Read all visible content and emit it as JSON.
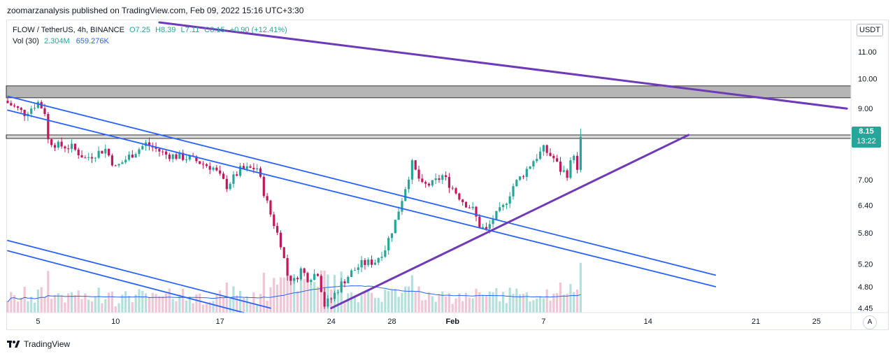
{
  "header": {
    "publisher": "zoomarzanalysis published on TradingView.com, Feb 09, 2022 15:16 UTC+3:30"
  },
  "legend": {
    "symbol": "FLOW / TetherUS, 4h, BINANCE",
    "open": "O7.25",
    "high": "H8.39",
    "low": "L7.11",
    "close": "C8.15",
    "change": "+0.90 (+12.41%)",
    "volume_label": "Vol (30)",
    "volume_value": "2.304M",
    "volume_ma": "659.276K"
  },
  "price_axis": {
    "currency": "USDT",
    "ticks": [
      "11.00",
      "10.00",
      "9.00",
      "8.15",
      "7.00",
      "6.40",
      "5.80",
      "5.20",
      "4.80",
      "4.45"
    ]
  },
  "last_price": {
    "price": "8.15",
    "countdown": "13:22",
    "color": "#26a69a"
  },
  "time_axis": {
    "ticks": [
      "5",
      "10",
      "17",
      "24",
      "28",
      "Feb",
      "7",
      "14",
      "21",
      "25"
    ]
  },
  "auto_scale_label": "A",
  "brand": {
    "logo": "tradingview-logo-icon",
    "name": "TradingView"
  },
  "colors": {
    "up": "#26a69a",
    "down": "#c2185b",
    "channel": "#2962ff",
    "trendline": "#6f3ab8",
    "zone": "#9e9e9e"
  },
  "chart_data": {
    "type": "candlestick",
    "timeframe": "4h",
    "symbol": "FLOW / TetherUS",
    "exchange": "BINANCE",
    "y_scale": "log",
    "ylim": [
      4.38,
      12.2
    ],
    "x_ticks": [
      "5",
      "10",
      "17",
      "24",
      "28",
      "Feb",
      "7",
      "14",
      "21",
      "25"
    ],
    "price_path": [
      [
        0,
        9.25
      ],
      [
        6,
        8.85
      ],
      [
        10,
        9.2
      ],
      [
        12,
        8.9
      ],
      [
        13,
        8.05
      ],
      [
        16,
        7.9
      ],
      [
        20,
        7.85
      ],
      [
        24,
        7.55
      ],
      [
        30,
        7.8
      ],
      [
        33,
        7.3
      ],
      [
        37,
        7.6
      ],
      [
        42,
        7.95
      ],
      [
        48,
        7.65
      ],
      [
        55,
        7.55
      ],
      [
        62,
        7.3
      ],
      [
        66,
        6.85
      ],
      [
        70,
        7.25
      ],
      [
        75,
        7.3
      ],
      [
        77,
        6.7
      ],
      [
        79,
        6.2
      ],
      [
        82,
        5.6
      ],
      [
        84,
        5.0
      ],
      [
        86,
        4.9
      ],
      [
        88,
        5.1
      ],
      [
        90,
        4.95
      ],
      [
        93,
        5.05
      ],
      [
        95,
        4.5
      ],
      [
        97,
        4.6
      ],
      [
        100,
        4.85
      ],
      [
        103,
        5.05
      ],
      [
        106,
        5.2
      ],
      [
        110,
        5.25
      ],
      [
        113,
        5.5
      ],
      [
        116,
        6.05
      ],
      [
        118,
        6.55
      ],
      [
        121,
        7.4
      ],
      [
        124,
        6.85
      ],
      [
        127,
        6.9
      ],
      [
        130,
        7.1
      ],
      [
        133,
        6.8
      ],
      [
        136,
        6.5
      ],
      [
        139,
        6.3
      ],
      [
        141,
        5.95
      ],
      [
        143,
        5.85
      ],
      [
        145,
        6.1
      ],
      [
        148,
        6.35
      ],
      [
        151,
        6.85
      ],
      [
        154,
        7.15
      ],
      [
        157,
        7.5
      ],
      [
        160,
        7.8
      ],
      [
        163,
        7.55
      ],
      [
        165,
        7.25
      ],
      [
        167,
        7.15
      ],
      [
        169,
        7.7
      ],
      [
        170,
        8.15
      ]
    ],
    "last_price": 8.15,
    "volume": {
      "label": "Vol (30)",
      "last": "2.304M",
      "ma": "659.276K"
    },
    "zones": [
      {
        "from": 9.35,
        "to": 9.75
      },
      {
        "from": 8.1,
        "to": 8.2
      }
    ],
    "lines": [
      {
        "name": "descending-channel-upper",
        "from": [
          0,
          9.4
        ],
        "to": [
          210,
          5.0
        ]
      },
      {
        "name": "descending-channel-lower",
        "from": [
          0,
          8.95
        ],
        "to": [
          210,
          4.8
        ]
      },
      {
        "name": "lower-channel-upper",
        "from": [
          0,
          5.65
        ],
        "to": [
          78,
          4.45
        ]
      },
      {
        "name": "lower-channel-lower",
        "from": [
          0,
          5.45
        ],
        "to": [
          70,
          4.38
        ]
      },
      {
        "name": "long-downtrend",
        "from": [
          45,
          12.2
        ],
        "to": [
          249,
          9.0
        ]
      },
      {
        "name": "rising-support",
        "from": [
          96,
          4.45
        ],
        "to": [
          202,
          8.2
        ]
      }
    ]
  }
}
